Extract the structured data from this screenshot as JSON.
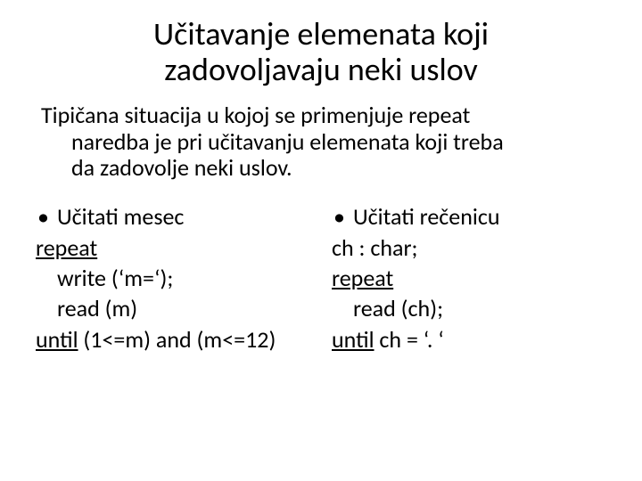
{
  "typography": {
    "font_family": "Calibri",
    "title_fontsize_pt": 36,
    "body_fontsize_pt": 26,
    "text_color": "#000000",
    "background_color": "#ffffff"
  },
  "title_l1": "Učitavanje elemenata koji",
  "title_l2": "zadovoljavaju neki uslov",
  "intro_l1": "Tipičana situacija u kojoj se primenjuje repeat",
  "intro_l2": "naredba je pri učitavanju elemenata koji treba",
  "intro_l3": "da zadovolje neki uslov.",
  "left": {
    "bullet": "Učitati mesec",
    "l1": "repeat",
    "l2": "write (‘m=‘);",
    "l3": "read (m)",
    "l4_u": "until",
    "l4_rest": " (1<=m) and (m<=12)"
  },
  "right": {
    "bullet": "Učitati rečenicu",
    "l1": "ch : char;",
    "l2": "repeat",
    "l3": "read (ch);",
    "l4_u": "until",
    "l4_rest": "  ch = ‘. ‘"
  }
}
